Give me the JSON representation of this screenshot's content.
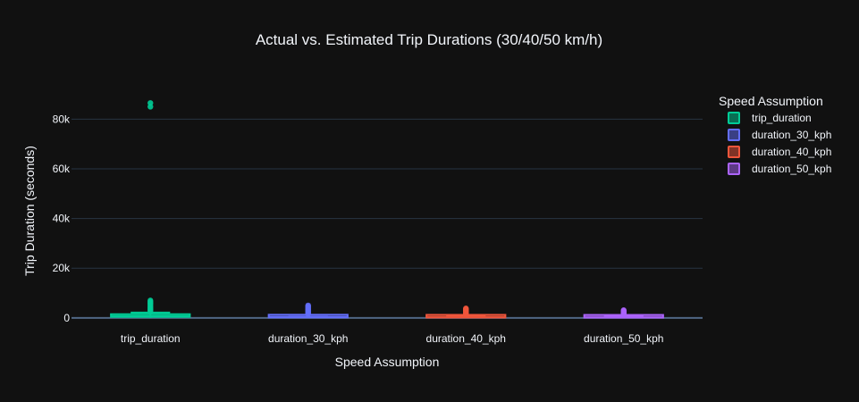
{
  "chart_data": {
    "type": "box",
    "title": "Actual vs. Estimated Trip Durations (30/40/50 km/h)",
    "xlabel": "Speed Assumption",
    "ylabel": "Trip Duration (seconds)",
    "ylim": [
      -1500,
      92000
    ],
    "yticks": [
      {
        "value": 0,
        "label": "0"
      },
      {
        "value": 20000,
        "label": "20k"
      },
      {
        "value": 40000,
        "label": "40k"
      },
      {
        "value": 60000,
        "label": "60k"
      },
      {
        "value": 80000,
        "label": "80k"
      }
    ],
    "categories": [
      "trip_duration",
      "duration_30_kph",
      "duration_40_kph",
      "duration_50_kph"
    ],
    "legend_title": "Speed Assumption",
    "legend_position": "right",
    "grid": true,
    "series": [
      {
        "name": "trip_duration",
        "color": "#00cc96",
        "min": 0,
        "q1": 400,
        "median": 660,
        "q3": 1100,
        "whisker_high": 2150,
        "outliers": [
          2500,
          3000,
          3500,
          4000,
          4500,
          5000,
          5500,
          6000,
          6500,
          7000,
          85000,
          86500
        ]
      },
      {
        "name": "duration_30_kph",
        "color": "#636efa",
        "min": 0,
        "q1": 180,
        "median": 320,
        "q3": 560,
        "whisker_high": 1150,
        "outliers": [
          1400,
          1800,
          2200,
          2600,
          3000,
          3400,
          3800,
          4200,
          4600,
          5000
        ]
      },
      {
        "name": "duration_40_kph",
        "color": "#ef553b",
        "min": 0,
        "q1": 140,
        "median": 240,
        "q3": 420,
        "whisker_high": 870,
        "outliers": [
          1100,
          1400,
          1700,
          2000,
          2300,
          2600,
          2900,
          3200,
          3500,
          3800
        ]
      },
      {
        "name": "duration_50_kph",
        "color": "#ab63fa",
        "min": 0,
        "q1": 110,
        "median": 190,
        "q3": 340,
        "whisker_high": 700,
        "outliers": [
          900,
          1100,
          1350,
          1600,
          1850,
          2100,
          2350,
          2600,
          2850,
          3100
        ]
      }
    ]
  }
}
